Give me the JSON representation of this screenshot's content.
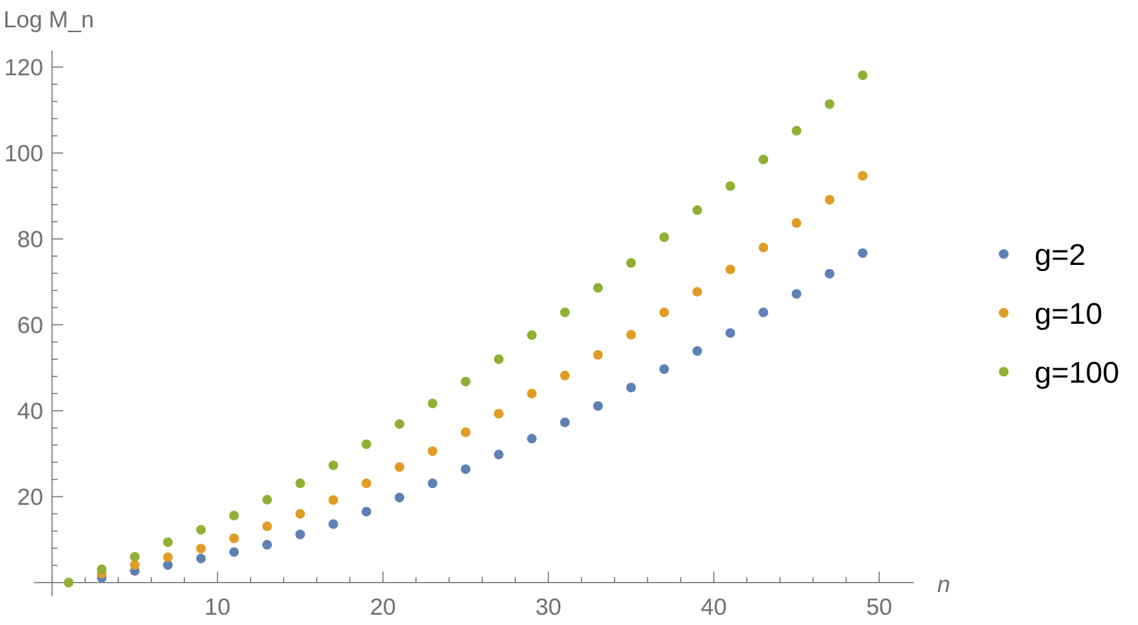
{
  "chart_data": {
    "type": "scatter",
    "title": "",
    "xlabel": "n",
    "ylabel": "Log M_n",
    "xlim": [
      0,
      50
    ],
    "ylim": [
      0,
      122
    ],
    "x_ticks": [
      "10",
      "20",
      "30",
      "40",
      "50"
    ],
    "y_ticks": [
      "20",
      "40",
      "60",
      "80",
      "100",
      "120"
    ],
    "grid": false,
    "legend_position": "right",
    "x": [
      1,
      3,
      5,
      7,
      9,
      11,
      13,
      15,
      17,
      19,
      21,
      23,
      25,
      27,
      29,
      31,
      33,
      35,
      37,
      39,
      41,
      43,
      45,
      47,
      49
    ],
    "series": [
      {
        "name": "g=2",
        "color": "#5e81b5",
        "values": [
          0,
          1.1,
          2.7,
          4.1,
          5.6,
          7.1,
          8.8,
          11.2,
          13.6,
          16.5,
          19.8,
          23.1,
          26.4,
          29.8,
          33.5,
          37.3,
          41.1,
          45.4,
          49.7,
          53.9,
          58.1,
          62.9,
          67.2,
          71.9,
          76.7
        ]
      },
      {
        "name": "g=10",
        "color": "#e19c24",
        "values": [
          0,
          2.1,
          4.1,
          5.9,
          7.9,
          10.3,
          13.1,
          16.0,
          19.2,
          23.1,
          26.9,
          30.6,
          35.0,
          39.3,
          44.0,
          48.2,
          53.0,
          57.7,
          62.9,
          67.7,
          72.9,
          78.0,
          83.7,
          89.1,
          94.7
        ]
      },
      {
        "name": "g=100",
        "color": "#8fb032",
        "values": [
          0,
          3.1,
          6.0,
          9.4,
          12.3,
          15.6,
          19.3,
          23.1,
          27.3,
          32.2,
          36.9,
          41.7,
          46.8,
          52.0,
          57.6,
          62.9,
          68.6,
          74.4,
          80.4,
          86.7,
          92.3,
          98.5,
          105.2,
          111.4,
          118.1
        ]
      }
    ]
  }
}
